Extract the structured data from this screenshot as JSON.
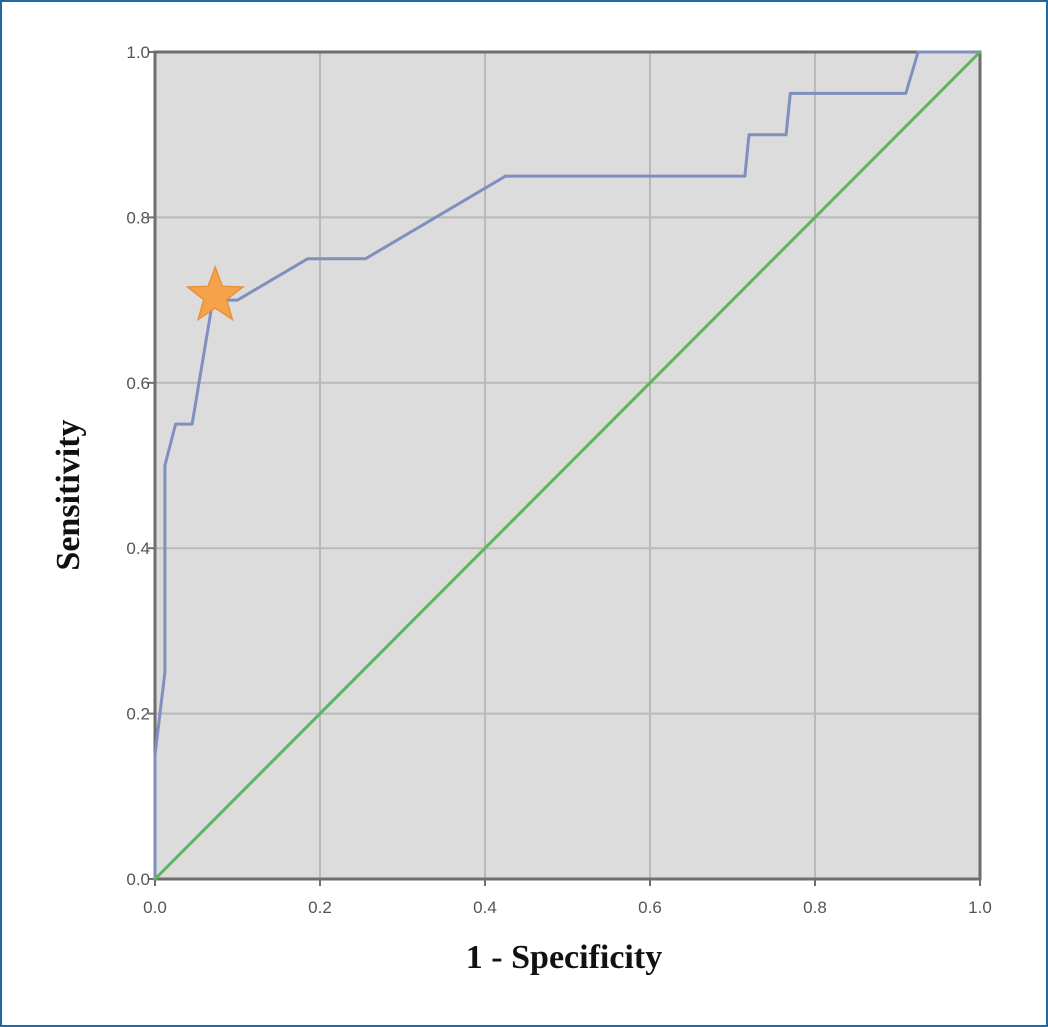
{
  "chart_data": {
    "type": "line",
    "title": "",
    "xlabel": "1 - Specificity",
    "ylabel": "Sensitivity",
    "xlim": [
      0.0,
      1.0
    ],
    "ylim": [
      0.0,
      1.0
    ],
    "x_ticks": [
      "0.0",
      "0.2",
      "0.4",
      "0.6",
      "0.8",
      "1.0"
    ],
    "y_ticks": [
      "0.0",
      "0.2",
      "0.4",
      "0.6",
      "0.8",
      "1.0"
    ],
    "grid": true,
    "legend": "none",
    "series": [
      {
        "color": "#7f8fbe",
        "x": [
          0.0,
          0.0,
          0.012,
          0.012,
          0.025,
          0.045,
          0.07,
          0.1,
          0.185,
          0.255,
          0.425,
          0.715,
          0.72,
          0.765,
          0.77,
          0.91,
          0.925,
          1.0
        ],
        "y": [
          0.0,
          0.15,
          0.25,
          0.5,
          0.55,
          0.55,
          0.7,
          0.7,
          0.75,
          0.75,
          0.85,
          0.85,
          0.9,
          0.9,
          0.95,
          0.95,
          1.0,
          1.0
        ]
      },
      {
        "color": "#5db55d",
        "x": [
          0.0,
          1.0
        ],
        "y": [
          0.0,
          1.0
        ]
      }
    ],
    "annotations": [
      {
        "type": "star-marker",
        "x": 0.073,
        "y": 0.705,
        "color": "#f5a34a"
      }
    ],
    "colors": {
      "plot_background": "#dcdcdd",
      "grid": "#b9b9b9",
      "axis": "#6e6e6e",
      "frame": "#1f6aa5"
    }
  }
}
